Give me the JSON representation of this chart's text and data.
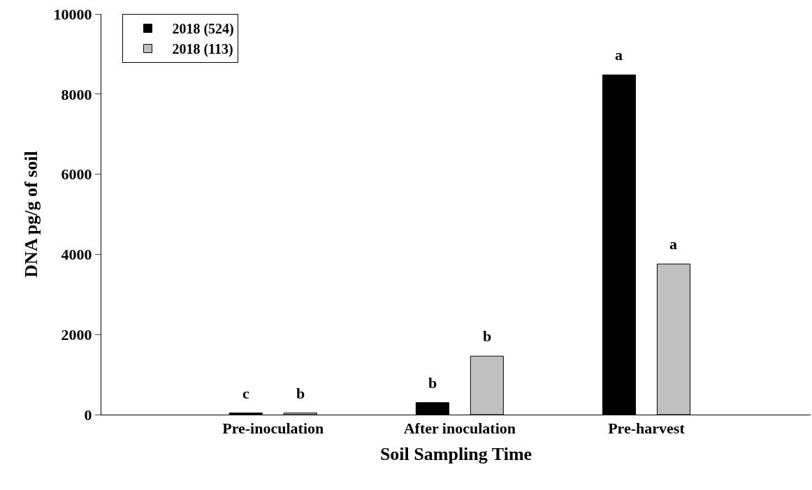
{
  "chart_data": {
    "type": "bar",
    "xlabel": "Soil Sampling Time",
    "ylabel": "DNA pg/g of soil",
    "categories": [
      "Pre-inoculation",
      "After inoculation",
      "Pre-harvest"
    ],
    "series": [
      {
        "name": "2018 (524)",
        "color": "#000000",
        "values": [
          40,
          300,
          8480
        ]
      },
      {
        "name": "2018 (113)",
        "color": "#c0c0c0",
        "values": [
          40,
          1460,
          3760
        ]
      }
    ],
    "ylim": [
      0,
      10000
    ],
    "yticks": [
      0,
      2000,
      4000,
      6000,
      8000,
      10000
    ],
    "legend": "top left",
    "annotations": [
      "c",
      "b",
      "b",
      "b",
      "a",
      "a"
    ]
  }
}
